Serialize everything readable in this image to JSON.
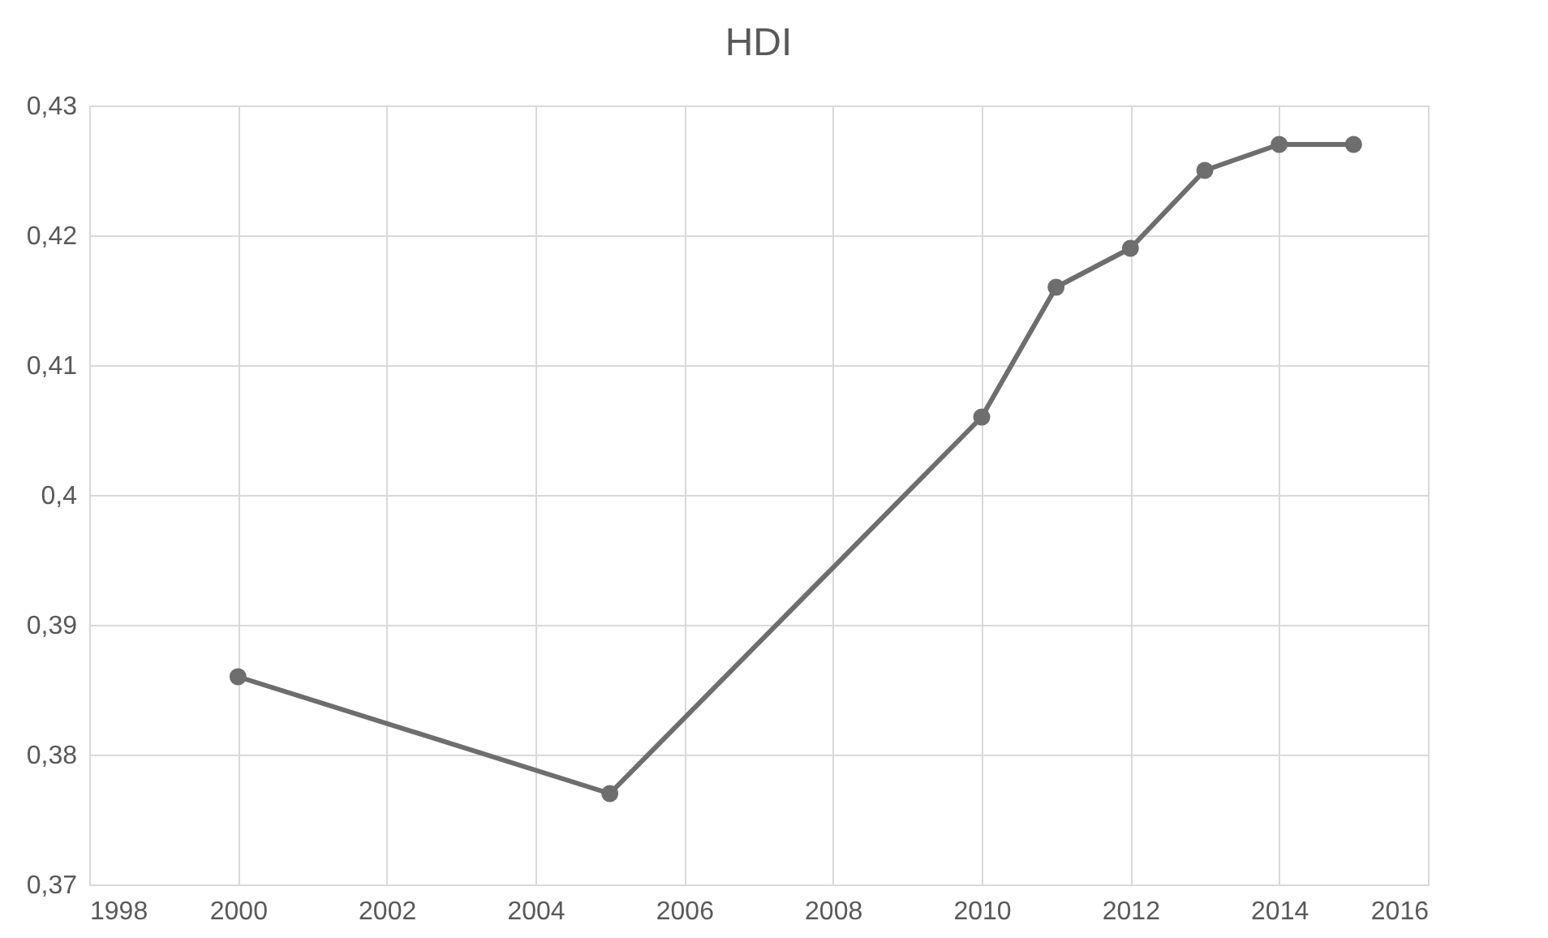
{
  "chart_data": {
    "type": "line",
    "title": "HDI",
    "x": [
      2000,
      2005,
      2010,
      2011,
      2012,
      2013,
      2014,
      2015
    ],
    "series": [
      {
        "color": "#6e6e6e",
        "values": [
          0.386,
          0.377,
          0.406,
          0.416,
          0.419,
          0.425,
          0.427,
          0.427
        ]
      }
    ],
    "xlim": [
      1998,
      2016
    ],
    "xticks": [
      1998,
      2000,
      2002,
      2004,
      2006,
      2008,
      2010,
      2012,
      2014,
      2016
    ],
    "ylim": [
      0.37,
      0.43
    ],
    "yticks": [
      {
        "value": 0.37,
        "label": "0,37"
      },
      {
        "value": 0.38,
        "label": "0,38"
      },
      {
        "value": 0.39,
        "label": "0,39"
      },
      {
        "value": 0.4,
        "label": "0,4"
      },
      {
        "value": 0.41,
        "label": "0,41"
      },
      {
        "value": 0.42,
        "label": "0,42"
      },
      {
        "value": 0.43,
        "label": "0,43"
      }
    ],
    "grid": true,
    "marker": "circle",
    "line_style": "solid",
    "legend": false
  }
}
